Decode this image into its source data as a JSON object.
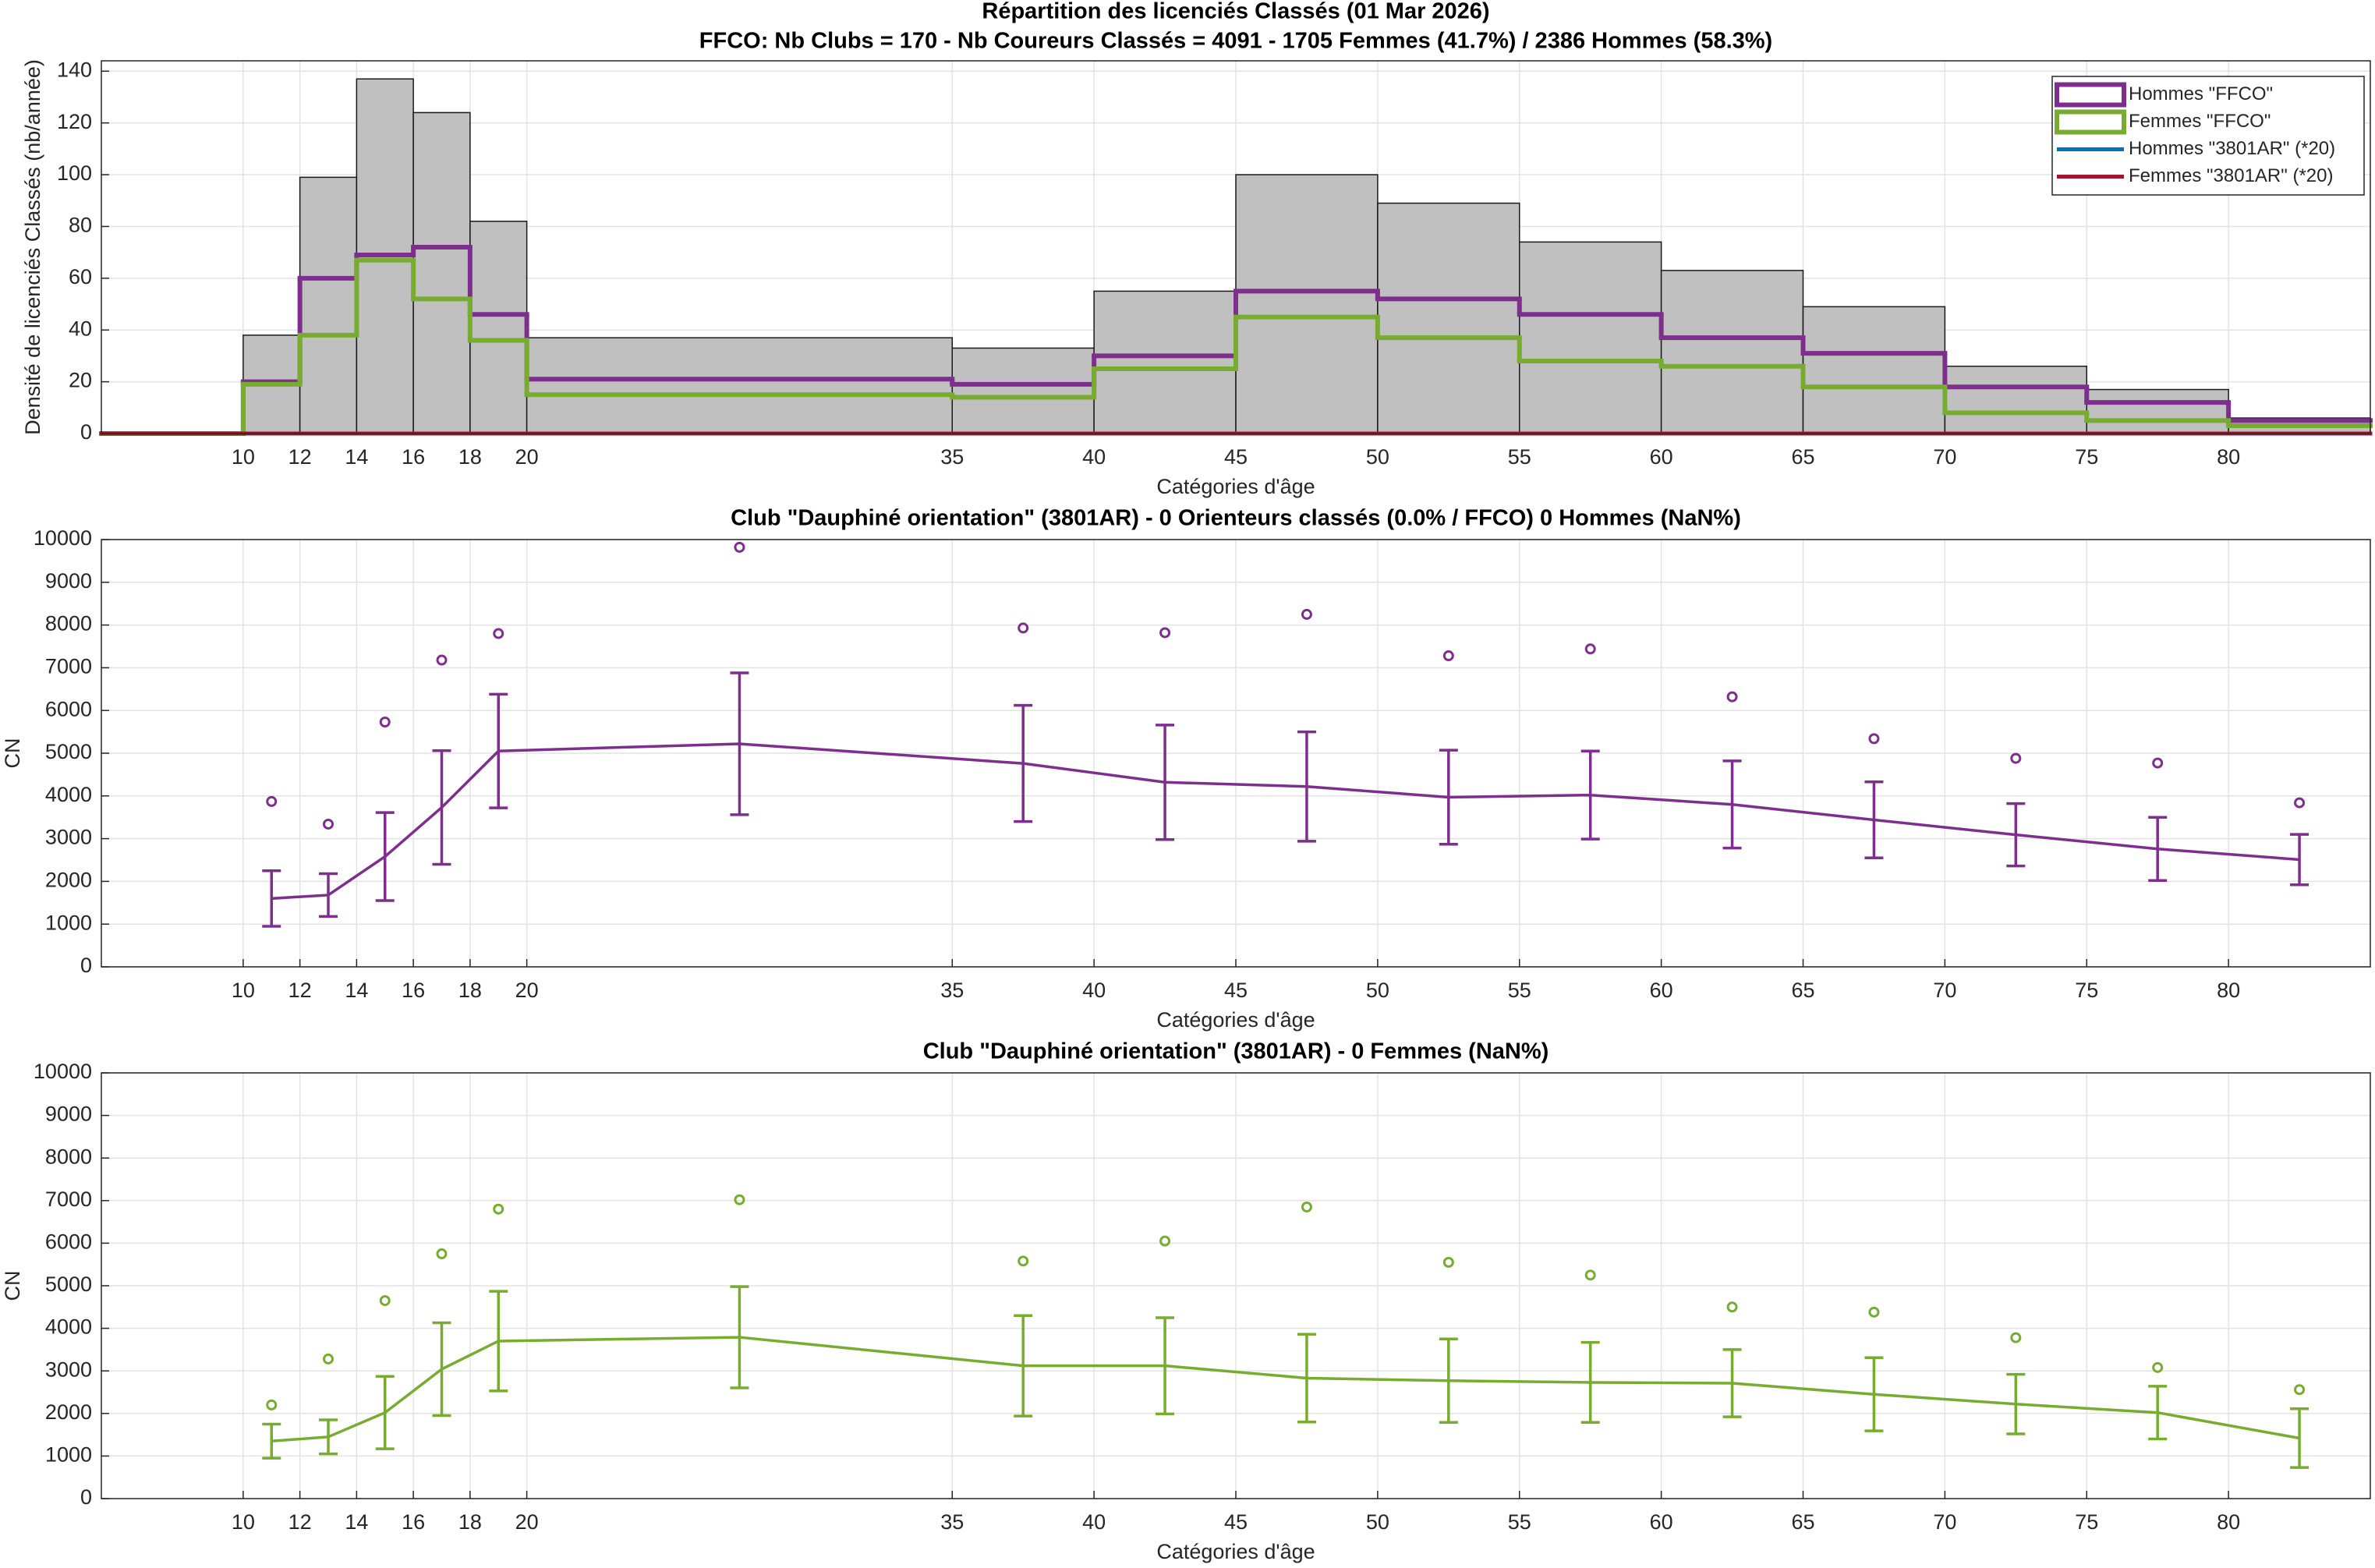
{
  "chart_data": [
    {
      "type": "histogram",
      "title": "Répartition des licenciés Classés (01 Mar 2026)",
      "subtitle": "FFCO: Nb Clubs = 170   -   Nb Coureurs Classés = 4091   -   1705 Femmes (41.7%) / 2386 Hommes (58.3%)",
      "xlabel": "Catégories d'âge",
      "ylabel": "Densité de licenciés Classés (nb/année)",
      "bins": [
        5,
        10,
        12,
        14,
        16,
        18,
        20,
        35,
        40,
        45,
        50,
        55,
        60,
        65,
        70,
        75,
        80,
        85
      ],
      "values": [
        0,
        38,
        99,
        137,
        124,
        82,
        37,
        33,
        55,
        100,
        89,
        74,
        63,
        49,
        26,
        17,
        6
      ],
      "color": "#c0c0c0",
      "series": [
        {
          "name": "Hommes \"FFCO\"",
          "color": "#7e2f8e",
          "values": [
            0,
            20,
            60,
            69,
            72,
            46,
            21,
            19,
            30,
            55,
            52,
            46,
            37,
            31,
            18,
            12,
            5
          ]
        },
        {
          "name": "Femmes \"FFCO\"",
          "color": "#77ac30",
          "values": [
            0,
            19,
            38,
            67,
            52,
            36,
            15,
            14,
            25,
            45,
            37,
            28,
            26,
            18,
            8,
            5,
            3
          ]
        },
        {
          "name": "Hommes \"3801AR\" (*20)",
          "color": "#0072bd",
          "values": [
            0,
            0,
            0,
            0,
            0,
            0,
            0,
            0,
            0,
            0,
            0,
            0,
            0,
            0,
            0,
            0,
            0
          ]
        },
        {
          "name": "Femmes \"3801AR\" (*20)",
          "color": "#a2142f",
          "values": [
            0,
            0,
            0,
            0,
            0,
            0,
            0,
            0,
            0,
            0,
            0,
            0,
            0,
            0,
            0,
            0,
            0
          ]
        }
      ],
      "xlim": [
        5,
        85
      ],
      "xticks": [
        10,
        12,
        14,
        16,
        18,
        20,
        35,
        40,
        45,
        50,
        55,
        60,
        65,
        70,
        75,
        80
      ],
      "ylim": [
        0,
        144
      ],
      "yticks": [
        0,
        20,
        40,
        60,
        80,
        100,
        120,
        140
      ],
      "grid": true,
      "legend": "northeast"
    },
    {
      "type": "line",
      "title": "Club \"Dauphiné orientation\" (3801AR)  -  0 Orienteurs classés (0.0% / FFCO)  0 Hommes (NaN%)",
      "xlabel": "Catégories d'âge",
      "ylabel": "CN",
      "x": [
        11,
        13,
        15,
        17,
        19,
        27.5,
        37.5,
        42.5,
        47.5,
        52.5,
        57.5,
        62.5,
        67.5,
        72.5,
        77.5,
        82.5
      ],
      "series": [
        {
          "color": "#7e2f8e",
          "values": [
            1600,
            1680,
            2580,
            3730,
            5050,
            5220,
            4760,
            4320,
            4220,
            3970,
            4020,
            3800,
            3440,
            3090,
            2760,
            2510
          ],
          "errors": [
            650,
            500,
            1030,
            1330,
            1330,
            1660,
            1360,
            1340,
            1280,
            1100,
            1030,
            1020,
            890,
            730,
            740,
            590
          ],
          "markers": [
            3870,
            3340,
            5730,
            7180,
            7800,
            9820,
            7930,
            7820,
            8250,
            7280,
            7440,
            6320,
            5340,
            4880,
            4770,
            3840
          ]
        }
      ],
      "xlim": [
        5,
        85
      ],
      "xticks": [
        10,
        12,
        14,
        16,
        18,
        20,
        35,
        40,
        45,
        50,
        55,
        60,
        65,
        70,
        75,
        80
      ],
      "ylim": [
        0,
        10000
      ],
      "yticks": [
        0,
        1000,
        2000,
        3000,
        4000,
        5000,
        6000,
        7000,
        8000,
        9000,
        10000
      ],
      "grid": true
    },
    {
      "type": "line",
      "title": "Club \"Dauphiné orientation\" (3801AR)  -  0 Femmes (NaN%)",
      "xlabel": "Catégories d'âge",
      "ylabel": "CN",
      "x": [
        11,
        13,
        15,
        17,
        19,
        27.5,
        37.5,
        42.5,
        47.5,
        52.5,
        57.5,
        62.5,
        67.5,
        72.5,
        77.5,
        82.5
      ],
      "series": [
        {
          "color": "#77ac30",
          "values": [
            1350,
            1450,
            2020,
            3040,
            3700,
            3790,
            3120,
            3120,
            2830,
            2770,
            2730,
            2710,
            2450,
            2220,
            2020,
            1420
          ],
          "errors": [
            400,
            400,
            850,
            1090,
            1170,
            1190,
            1180,
            1130,
            1030,
            980,
            940,
            790,
            860,
            700,
            620,
            690
          ],
          "markers": [
            2200,
            3280,
            4650,
            5750,
            6800,
            7020,
            5580,
            6050,
            6850,
            5550,
            5250,
            4500,
            4380,
            3780,
            3080,
            2560
          ]
        }
      ],
      "xlim": [
        5,
        85
      ],
      "xticks": [
        10,
        12,
        14,
        16,
        18,
        20,
        35,
        40,
        45,
        50,
        55,
        60,
        65,
        70,
        75,
        80
      ],
      "ylim": [
        0,
        10000
      ],
      "yticks": [
        0,
        1000,
        2000,
        3000,
        4000,
        5000,
        6000,
        7000,
        8000,
        9000,
        10000
      ],
      "grid": true
    }
  ]
}
